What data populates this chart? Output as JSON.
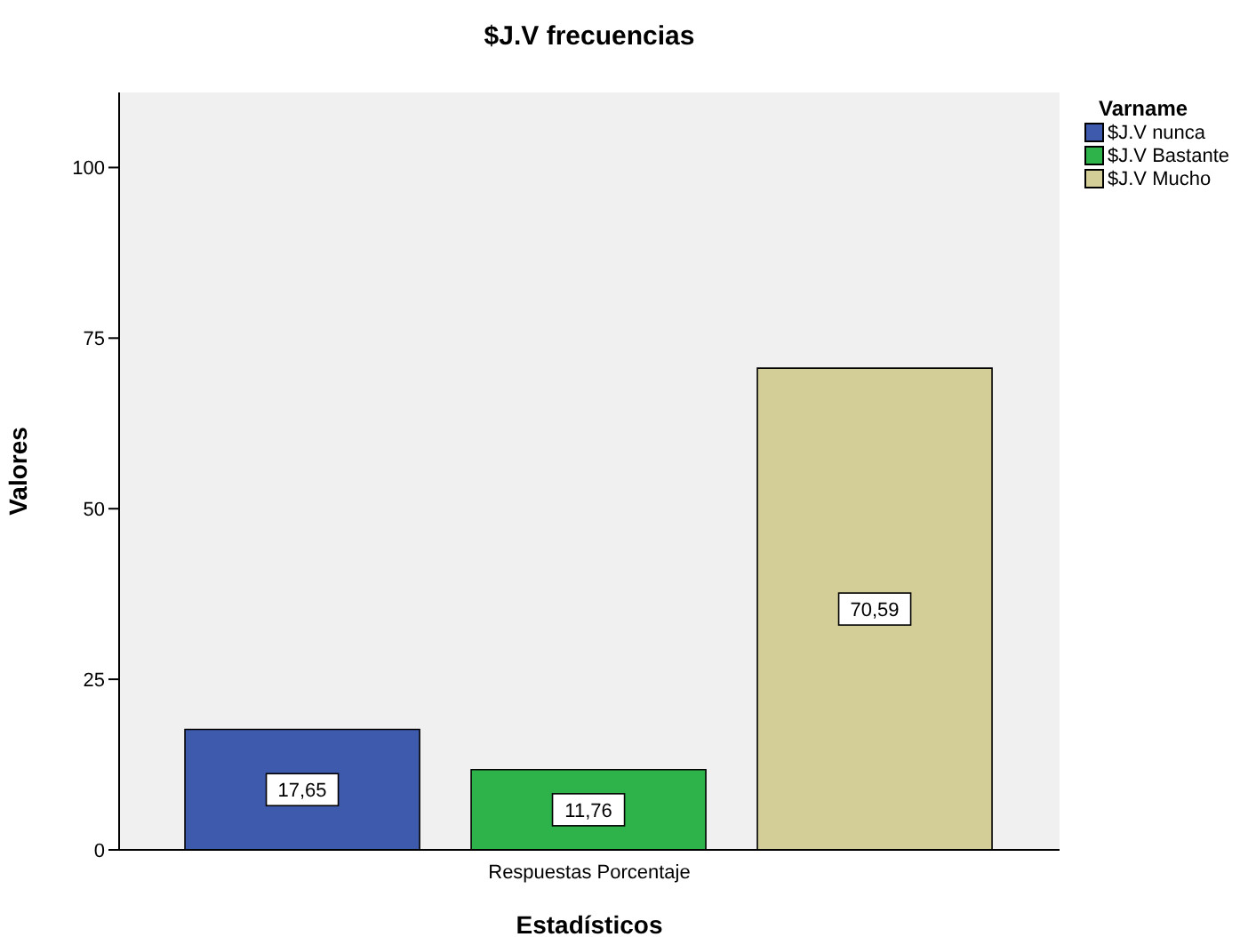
{
  "chart_data": {
    "type": "bar",
    "title": "$J.V frecuencias",
    "xlabel": "Estadísticos",
    "ylabel": "Valores",
    "legend_title": "Varname",
    "categories": [
      "Respuestas Porcentaje"
    ],
    "series": [
      {
        "name": "$J.V nunca",
        "color": "#3d5aad",
        "values": [
          17.65
        ],
        "value_labels": [
          "17,65"
        ]
      },
      {
        "name": "$J.V Bastante",
        "color": "#2db34a",
        "values": [
          11.76
        ],
        "value_labels": [
          "11,76"
        ]
      },
      {
        "name": "$J.V Mucho",
        "color": "#d3ce97",
        "values": [
          70.59
        ],
        "value_labels": [
          "70,59"
        ]
      }
    ],
    "ylim": [
      0,
      111
    ],
    "yticks": [
      0,
      25,
      50,
      75,
      100
    ],
    "grid": false,
    "legend": "right"
  }
}
